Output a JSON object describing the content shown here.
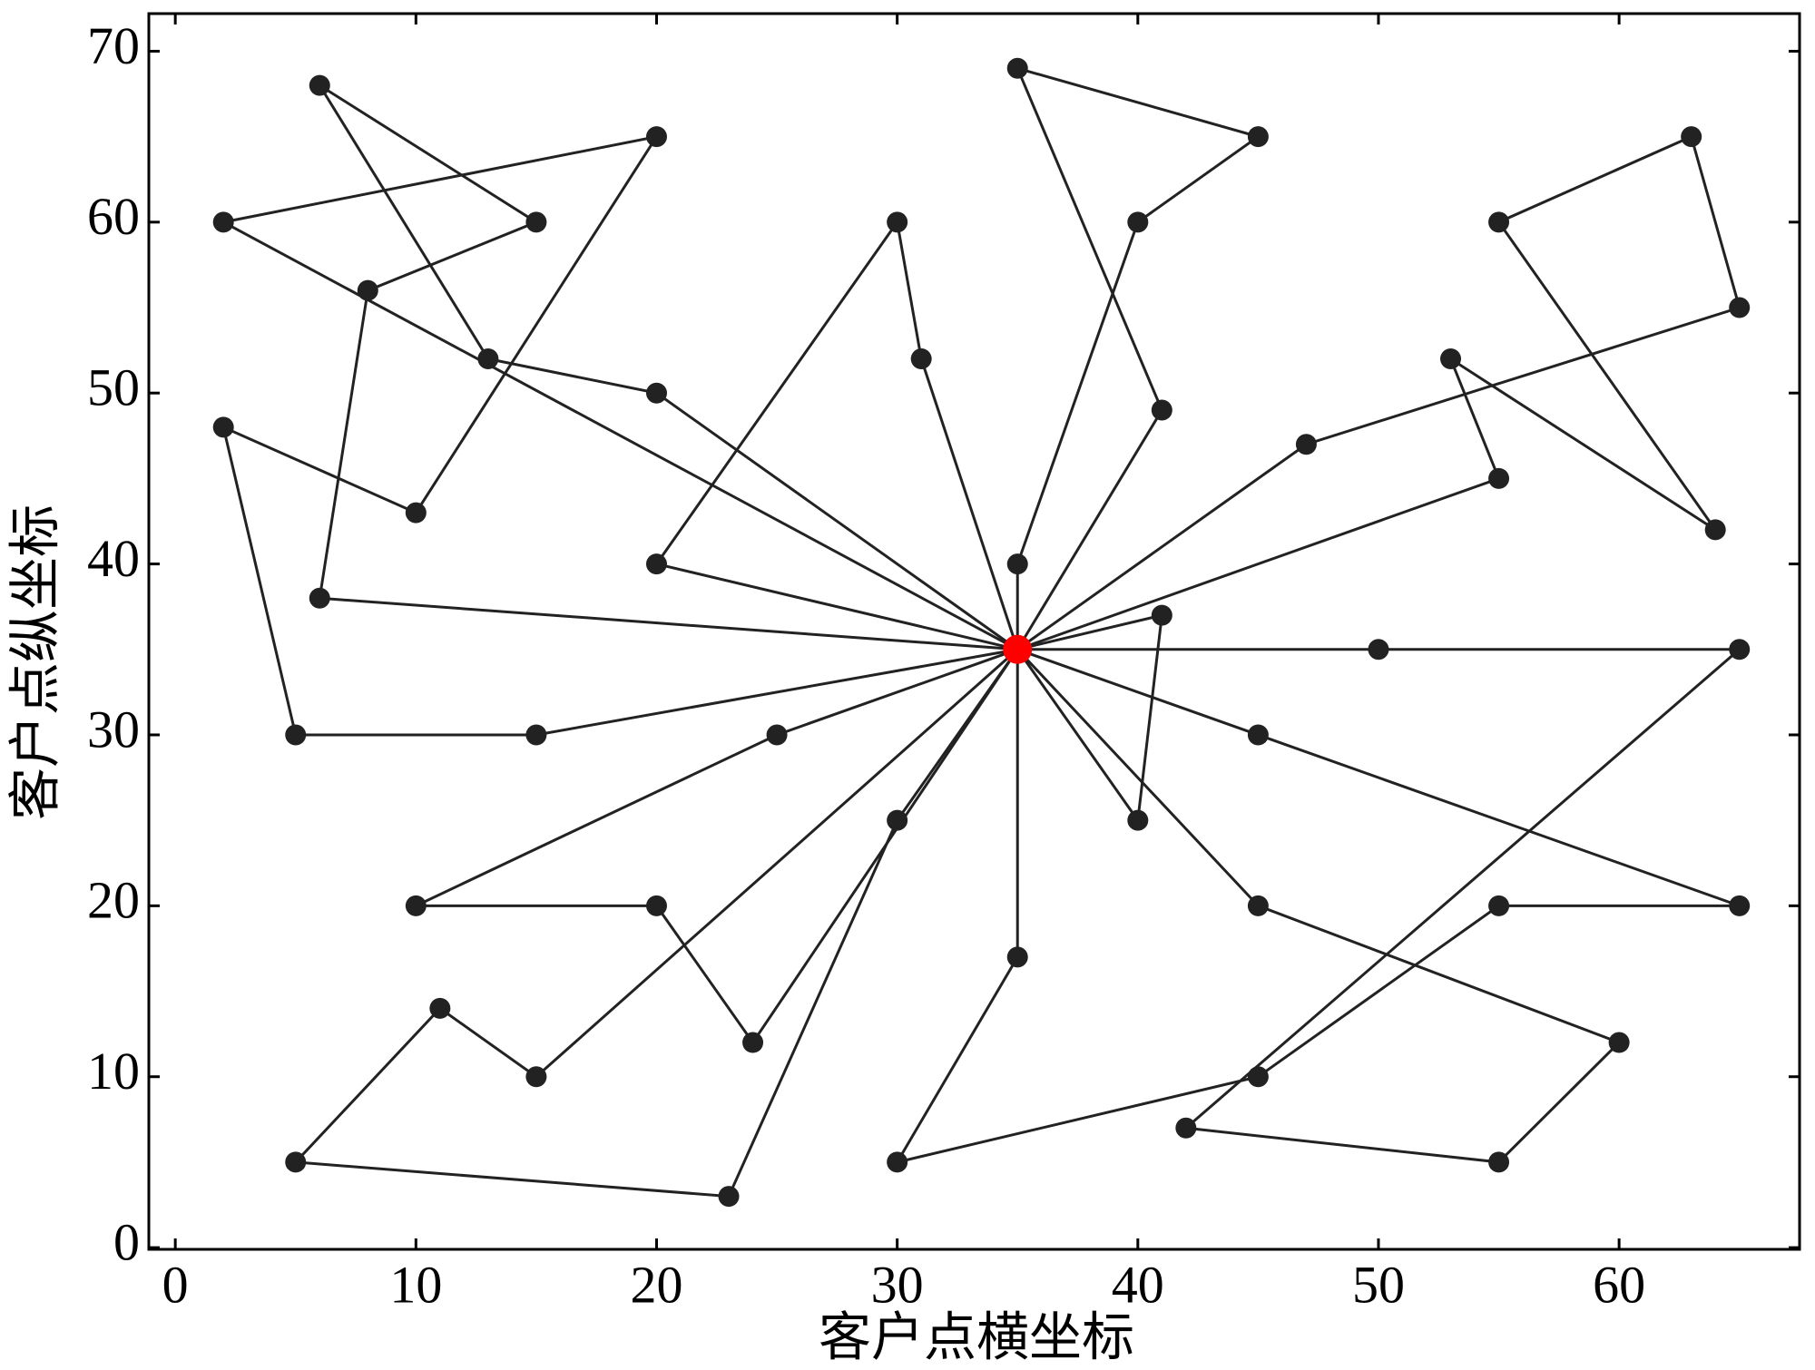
{
  "chart_data": {
    "type": "line",
    "xlabel": "客户点横坐标",
    "ylabel": "客户点纵坐标",
    "xlim": [
      -1.1,
      67.5
    ],
    "ylim": [
      -0.1,
      72.2
    ],
    "xticks": [
      0,
      10,
      20,
      30,
      40,
      50,
      60
    ],
    "yticks": [
      0,
      10,
      20,
      30,
      40,
      50,
      60,
      70
    ],
    "series": [
      {
        "color": "#222222",
        "x": [
          35,
          6,
          8,
          15,
          6,
          13,
          20,
          35
        ],
        "values": [
          35,
          38,
          56,
          60,
          68,
          52,
          50,
          35
        ]
      },
      {
        "color": "#222222",
        "x": [
          35,
          2,
          20,
          10,
          2,
          5,
          15,
          35
        ],
        "values": [
          35,
          60,
          65,
          43,
          48,
          30,
          30,
          35
        ]
      },
      {
        "color": "#222222",
        "x": [
          35,
          20,
          30,
          31,
          35
        ],
        "values": [
          35,
          40,
          60,
          52,
          35
        ]
      },
      {
        "color": "#222222",
        "x": [
          35,
          35,
          40,
          45,
          35,
          41,
          35
        ],
        "values": [
          35,
          40,
          60,
          65,
          69,
          49,
          35
        ]
      },
      {
        "color": "#222222",
        "x": [
          35,
          47,
          65,
          63,
          55,
          64,
          53,
          55,
          35
        ],
        "values": [
          35,
          47,
          55,
          65,
          60,
          42,
          52,
          45,
          35
        ]
      },
      {
        "color": "#222222",
        "x": [
          35,
          41,
          40,
          35
        ],
        "values": [
          35,
          37,
          25,
          35
        ]
      },
      {
        "color": "#222222",
        "x": [
          35,
          50,
          65,
          42,
          55,
          60,
          45,
          35
        ],
        "values": [
          35,
          35,
          35,
          7,
          5,
          12,
          20,
          35
        ]
      },
      {
        "color": "#222222",
        "x": [
          35,
          45,
          65,
          55,
          45,
          30,
          35,
          35
        ],
        "values": [
          35,
          30,
          20,
          20,
          10,
          5,
          17,
          35
        ]
      },
      {
        "color": "#222222",
        "x": [
          35,
          30,
          23,
          5,
          11,
          15,
          35
        ],
        "values": [
          35,
          25,
          3,
          5,
          14,
          10,
          35
        ]
      },
      {
        "color": "#222222",
        "x": [
          35,
          25,
          10,
          20,
          24,
          35
        ],
        "values": [
          35,
          30,
          20,
          20,
          12,
          35
        ]
      }
    ],
    "depot": {
      "x": 35,
      "y": 35,
      "color": "#ff0000"
    }
  }
}
